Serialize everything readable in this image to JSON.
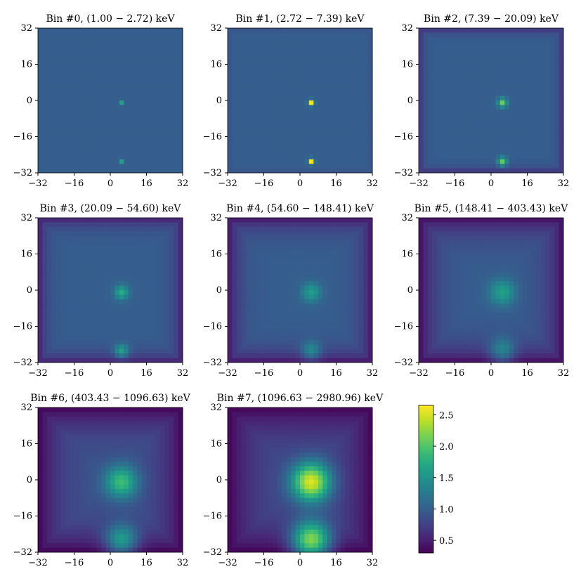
{
  "chart_data": {
    "type": "heatmap",
    "grid_size": 32,
    "axis_range": [
      -32,
      32
    ],
    "ticks": [
      -32,
      -16,
      0,
      16,
      32
    ],
    "colormap": "viridis",
    "colorbar": {
      "range": [
        0.3,
        2.65
      ],
      "ticks": [
        0.5,
        1.0,
        1.5,
        2.0,
        2.5
      ],
      "tick_labels": [
        "0.5",
        "1.0",
        "1.5",
        "2.0",
        "2.5"
      ]
    },
    "sources": [
      {
        "x": 5,
        "y": -1
      },
      {
        "x": 5,
        "y": -27
      }
    ],
    "panels": [
      {
        "title": "Bin #0,  (1.00 − 2.72) keV",
        "background": 1.0,
        "edge_falloff": 0.0,
        "edge_width": 1.0,
        "peak": 0.6,
        "peak_sigma": 0.6
      },
      {
        "title": "Bin #1,  (2.72 − 7.39) keV",
        "background": 1.0,
        "edge_falloff": 0.15,
        "edge_width": 1.2,
        "peak": 1.6,
        "peak_sigma": 0.9
      },
      {
        "title": "Bin #2,  (7.39 − 20.09) keV",
        "background": 1.0,
        "edge_falloff": 0.45,
        "edge_width": 2.0,
        "peak": 1.1,
        "peak_sigma": 1.4
      },
      {
        "title": "Bin #3,  (20.09 − 54.60) keV",
        "background": 1.0,
        "edge_falloff": 0.55,
        "edge_width": 3.5,
        "peak": 0.75,
        "peak_sigma": 2.2
      },
      {
        "title": "Bin #4,  (54.60 − 148.41) keV",
        "background": 1.0,
        "edge_falloff": 0.6,
        "edge_width": 5.0,
        "peak": 0.6,
        "peak_sigma": 3.0
      },
      {
        "title": "Bin #5,  (148.41 − 403.43) keV",
        "background": 1.0,
        "edge_falloff": 0.65,
        "edge_width": 7.0,
        "peak": 0.65,
        "peak_sigma": 4.0
      },
      {
        "title": "Bin #6,  (403.43 − 1096.63) keV",
        "background": 0.95,
        "edge_falloff": 0.65,
        "edge_width": 10.0,
        "peak": 1.0,
        "peak_sigma": 5.0
      },
      {
        "title": "Bin #7,  (1096.63 − 2980.96) keV",
        "background": 0.9,
        "edge_falloff": 0.6,
        "edge_width": 12.0,
        "peak": 1.7,
        "peak_sigma": 6.0
      }
    ]
  }
}
